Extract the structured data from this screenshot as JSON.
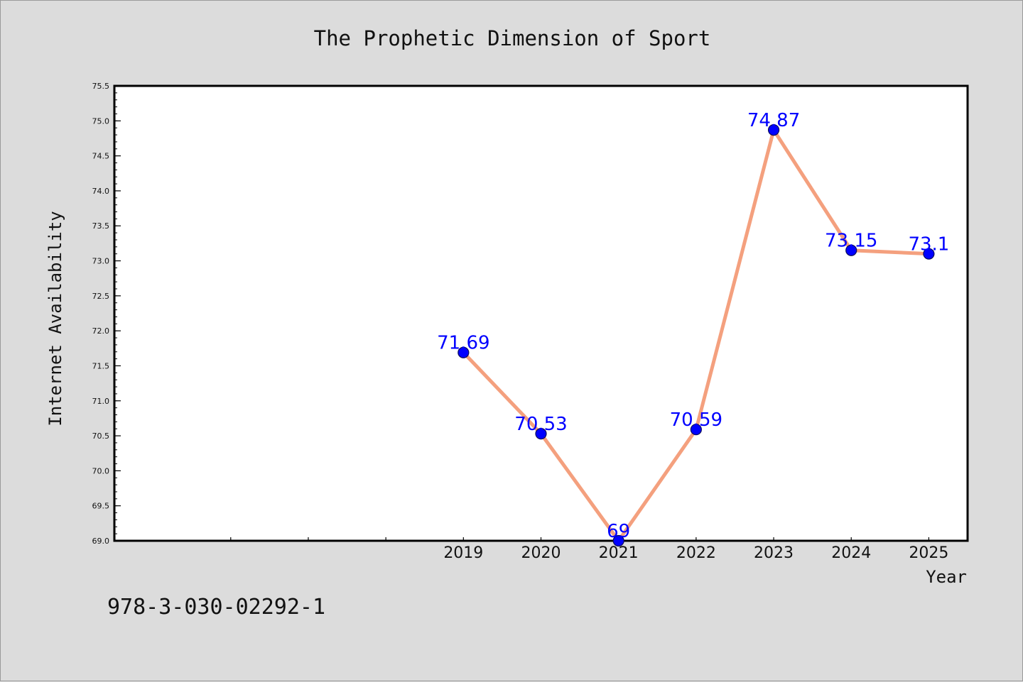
{
  "footer_text": "978-3-030-02292-1",
  "colors": {
    "line": "#f4a07e",
    "marker": "#0000ff",
    "marker_edge": "#0b0b5a",
    "label": "#0000ff",
    "background": "#dcdcdc",
    "plot_bg": "#ffffff"
  },
  "chart_data": {
    "type": "line",
    "title": "The Prophetic Dimension of Sport",
    "xlabel": "Year",
    "ylabel": "Internet Availability",
    "categories": [
      "2019",
      "2020",
      "2021",
      "2022",
      "2023",
      "2024",
      "2025"
    ],
    "values": [
      71.69,
      70.53,
      69,
      70.59,
      74.87,
      73.15,
      73.1
    ],
    "data_labels": [
      "71.69",
      "70.53",
      "69",
      "70.59",
      "74.87",
      "73.15",
      "73.1"
    ],
    "x_tick_positions": [
      2016,
      2017,
      2018,
      2019,
      2020,
      2021,
      2022,
      2023,
      2024,
      2025
    ],
    "xlim": [
      2014.5,
      2025.5
    ],
    "ylim": [
      69.0,
      75.5
    ],
    "yticks": [
      "69.0",
      "69.5",
      "70.0",
      "70.5",
      "71.0",
      "71.5",
      "72.0",
      "72.5",
      "73.0",
      "73.5",
      "74.0",
      "74.5",
      "75.0",
      "75.5"
    ],
    "grid": false,
    "legend": "none"
  }
}
